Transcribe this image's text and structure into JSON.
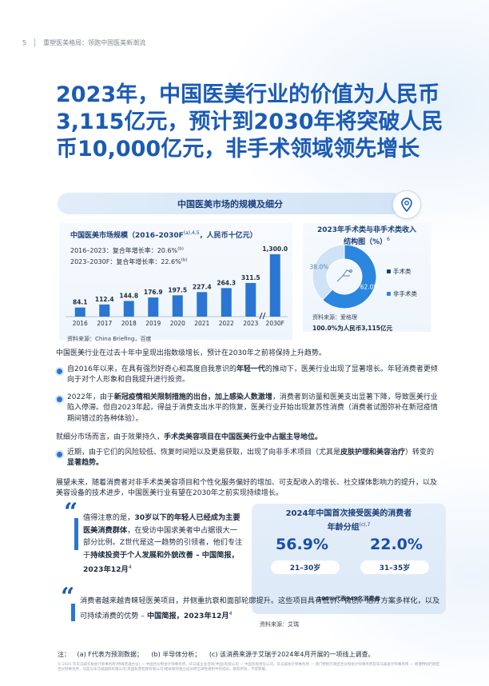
{
  "header": {
    "page_number": "5",
    "doc_title": "重塑医美格局：领跑中国医美新潮流"
  },
  "title": "2023年，中国医美行业的价值为人民币3,115亿元，预计到2030年将突破人民币10,000亿元，非手术领域领先增长",
  "section_title": "中国医美市场的规模及细分",
  "market_chart": {
    "title": "中国医美市场规模（2016–2030F",
    "title_sup": "(a),4,5",
    "title_tail": "，人民币十亿元）",
    "cagr1_label": "2016–2023：复合年增长率：20.6%",
    "cagr1_sup": "(b)",
    "cagr2_label": "2023–2030F：复合年增长率：22.6%",
    "cagr2_sup": "(b)",
    "source": "资料来源：China Briefing，百度"
  },
  "chart_data": [
    {
      "type": "bar",
      "title": "中国医美市场规模（2016–2030F，人民币十亿元）",
      "categories": [
        "2016",
        "2017",
        "2018",
        "2019",
        "2020",
        "2021",
        "2022",
        "2023",
        "2030F"
      ],
      "values": [
        84.1,
        112.4,
        144.8,
        176.9,
        197.5,
        227.4,
        264.3,
        311.5,
        1300.0
      ],
      "value_labels": [
        "84.1",
        "112.4",
        "144.8",
        "176.9",
        "197.5",
        "227.4",
        "264.3",
        "311.5",
        "1,300.0"
      ],
      "axis_break_before": "2030F",
      "colors": {
        "bar": "#2a76d2",
        "forecast": "#2a76d2"
      }
    },
    {
      "type": "pie",
      "title": "2023年手术类与非手术类收入结构图（%）",
      "slices": [
        {
          "label": "手术类",
          "value": 38.0,
          "value_label": "38.0%",
          "color": "#cfe3f7"
        },
        {
          "label": "非手术类",
          "value": 62.0,
          "value_label": "62.0%",
          "color": "#2a86de"
        }
      ]
    }
  ],
  "pie": {
    "title_line1": "2023年手术类与非手术类收入",
    "title_line2": "结构图（%）",
    "title_sup": "6",
    "source": "资料来源：爱格理",
    "footnote": "100.0%为人民币3,115亿元"
  },
  "body": {
    "p1": "中国医美行业在过去十年中呈现出指数级增长，预计在2030年之前将保持上升趋势。",
    "b1_pre": "自2016年以来，在具有强烈好奇心和高度自我意识的",
    "b1_bold": "年轻一代",
    "b1_post": "的推动下，医美行业出现了显著增长。年轻消费者更倾向于对个人形象和自我提升进行投资。",
    "b2_pre": "2022年，由于",
    "b2_bold": "新冠疫情相关限制措施的出台，加上感染人数激增",
    "b2_post": "，消费者到访量和医美支出显著下降，导致医美行业陷入停滞。但自2023年起，得益于消费支出水平的恢复，医美行业开始出现复苏性消费（消费者试图弥补在新冠疫情期间错过的各种体验）。",
    "p2_pre": "就细分市场而言，由于效果持久，",
    "p2_bold": "手术类美容项目在中国医美行业中占据主导地位。",
    "b3_pre": "近期，由于它们的风险较低、恢复时间短以及更易获取，出现了向非手术项目（尤其是",
    "b3_bold": "皮肤护理和美容治疗",
    "b3_mid": "）转变的",
    "b3_bold2": "显著趋势。",
    "p3": "展望未来，随着消费者对非手术类美容项目和个性化服务偏好的增加、可支配收入的增长、社交媒体影响力的提升，以及美容设备的技术进步，中国医美行业有望在2030年之前实现持续增长。"
  },
  "quote1": {
    "pre": "值得注意的是，",
    "bold1": "30岁以下的年轻人已经成为主要医美消费群体",
    "mid": "，在受访中国求美者中占据很大一部分比例。Z世代是这一趋势的引领者，他们专注于",
    "bold2": "持续投资于个人发展和外貌改善 – 中国简报，2023年12月",
    "sup": "4"
  },
  "quote2": {
    "text": "消费者越来越青睐轻医美项目，并侧重抗衰和面部轮廓提升。这些项目具有低价、微创、治疗方案多样化，以及可持续消费的优势 – ",
    "bold": "中国简报，2023年12月",
    "sup": "4"
  },
  "age_box": {
    "title_line1": "2024年中国首次接受医美的消费者",
    "title_line2": "年龄分组",
    "title_sup": "(c),7",
    "pct1": "56.9%",
    "range1": "21–30岁",
    "pct2": "22.0%",
    "range2": "31–35岁",
    "note": "100%代表949名消费者",
    "source": "资料来源：艾瑞"
  },
  "notes": {
    "label": "注：",
    "a": "(a) F代表为预测数据；",
    "b": "(b) 半导体分析；",
    "c": "(c) 该消费来源于艾瑞于2024年4月开展的一项线上调查。"
  },
  "disclaimer": "© 2025 年毕马威华振会计师事务所(特殊普通合伙) — 中国合伙制会计师事务所、毕马威企业咨询(中国)有限公司 — 中国有限责任公司、毕马威会计师事务所 — 澳门特别行政区合伙制会计师事务所及毕马威会计师事务所 — 香港特别行政区合伙制事务所，均是与毕马威国际有限公司(英国私营担保有限公司)相关联的独立成员所全球性组织中的成员。版权所有，不得转载。",
  "colors": {
    "title": "#1b5bb4",
    "accent": "#2a76d2",
    "section_bg": "#dce9f7"
  }
}
